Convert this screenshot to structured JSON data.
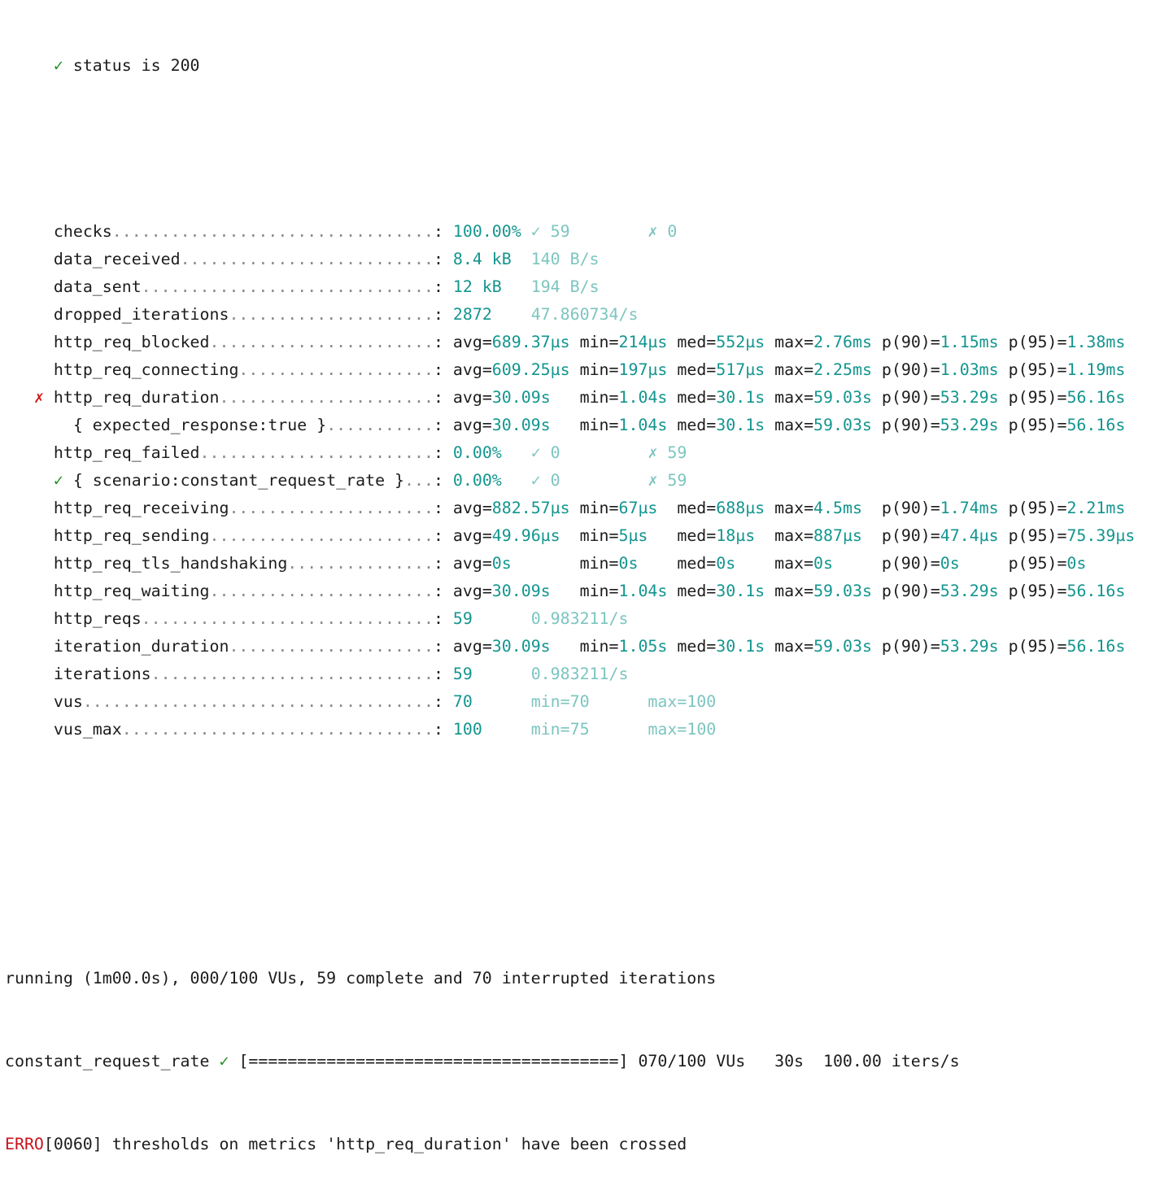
{
  "colors": {
    "text": "#1c1c1c",
    "value": "#13958f",
    "secondary": "#7cc5c0",
    "pass": "#1f8f1f",
    "fail": "#d01818",
    "error": "#c8141e"
  },
  "check_result": {
    "mark": "✓",
    "text": "status is 200"
  },
  "metrics": [
    {
      "name": "checks",
      "type": "rate",
      "values": [
        {
          "t": "100.00%",
          "c": "val"
        },
        {
          "t": "✓ 59",
          "c": "sub"
        },
        {
          "t": "✗ 0",
          "c": "sub"
        }
      ]
    },
    {
      "name": "data_received",
      "type": "counter",
      "values": [
        {
          "t": "8.4 kB",
          "c": "val"
        },
        {
          "t": "140 B/s",
          "c": "sub"
        }
      ]
    },
    {
      "name": "data_sent",
      "type": "counter",
      "values": [
        {
          "t": "12 kB",
          "c": "val"
        },
        {
          "t": "194 B/s",
          "c": "sub"
        }
      ]
    },
    {
      "name": "dropped_iterations",
      "type": "counter",
      "values": [
        {
          "t": "2872",
          "c": "val"
        },
        {
          "t": "47.860734/s",
          "c": "sub"
        }
      ]
    },
    {
      "name": "http_req_blocked",
      "type": "trend",
      "stats": [
        "689.37µs",
        "214µs",
        "552µs",
        "2.76ms",
        "1.15ms",
        "1.38ms"
      ]
    },
    {
      "name": "http_req_connecting",
      "type": "trend",
      "stats": [
        "609.25µs",
        "197µs",
        "517µs",
        "2.25ms",
        "1.03ms",
        "1.19ms"
      ]
    },
    {
      "name": "http_req_duration",
      "mark": "✗",
      "markClass": "bad",
      "markCol": 3,
      "type": "trend",
      "stats": [
        "30.09s",
        "1.04s",
        "30.1s",
        "59.03s",
        "53.29s",
        "56.16s"
      ]
    },
    {
      "name": "{ expected_response:true }",
      "indent": 2,
      "type": "trend",
      "stats": [
        "30.09s",
        "1.04s",
        "30.1s",
        "59.03s",
        "53.29s",
        "56.16s"
      ]
    },
    {
      "name": "http_req_failed",
      "type": "rate",
      "values": [
        {
          "t": "0.00%",
          "c": "val"
        },
        {
          "t": "✓ 0",
          "c": "sub"
        },
        {
          "t": "✗ 59",
          "c": "sub"
        }
      ]
    },
    {
      "name": "{ scenario:constant_request_rate }",
      "indent": 2,
      "mark": "✓",
      "markClass": "ok",
      "markCol": 5,
      "type": "rate",
      "values": [
        {
          "t": "0.00%",
          "c": "val"
        },
        {
          "t": "✓ 0",
          "c": "sub"
        },
        {
          "t": "✗ 59",
          "c": "sub"
        }
      ]
    },
    {
      "name": "http_req_receiving",
      "type": "trend",
      "stats": [
        "882.57µs",
        "67µs",
        "688µs",
        "4.5ms",
        "1.74ms",
        "2.21ms"
      ]
    },
    {
      "name": "http_req_sending",
      "type": "trend",
      "stats": [
        "49.96µs",
        "5µs",
        "18µs",
        "887µs",
        "47.4µs",
        "75.39µs"
      ]
    },
    {
      "name": "http_req_tls_handshaking",
      "type": "trend",
      "stats": [
        "0s",
        "0s",
        "0s",
        "0s",
        "0s",
        "0s"
      ]
    },
    {
      "name": "http_req_waiting",
      "type": "trend",
      "stats": [
        "30.09s",
        "1.04s",
        "30.1s",
        "59.03s",
        "53.29s",
        "56.16s"
      ]
    },
    {
      "name": "http_reqs",
      "type": "counter",
      "values": [
        {
          "t": "59",
          "c": "val"
        },
        {
          "t": "0.983211/s",
          "c": "sub"
        }
      ]
    },
    {
      "name": "iteration_duration",
      "type": "trend",
      "stats": [
        "30.09s",
        "1.05s",
        "30.1s",
        "59.03s",
        "53.29s",
        "56.16s"
      ]
    },
    {
      "name": "iterations",
      "type": "counter",
      "values": [
        {
          "t": "59",
          "c": "val"
        },
        {
          "t": "0.983211/s",
          "c": "sub"
        }
      ]
    },
    {
      "name": "vus",
      "type": "gauge",
      "values": [
        {
          "t": "70",
          "c": "val"
        },
        {
          "t": "min=70",
          "c": "sub"
        },
        {
          "t": "max=100",
          "c": "sub"
        }
      ]
    },
    {
      "name": "vus_max",
      "type": "gauge",
      "values": [
        {
          "t": "100",
          "c": "val"
        },
        {
          "t": "min=75",
          "c": "sub"
        },
        {
          "t": "max=100",
          "c": "sub"
        }
      ]
    }
  ],
  "trend_keys": [
    "avg",
    "min",
    "med",
    "max",
    "p(90)",
    "p(95)"
  ],
  "footer": {
    "running": "running (1m00.0s), 000/100 VUs, 59 complete and 70 interrupted iterations",
    "scenario_name": "constant_request_rate",
    "scenario_mark": "✓",
    "progress_bar": "[======================================]",
    "progress_percent": 100,
    "scenario_status": "070/100 VUs   30s  100.00 iters/s",
    "error_level": "ERRO",
    "error_message": "[0060] thresholds on metrics 'http_req_duration' have been crossed"
  }
}
